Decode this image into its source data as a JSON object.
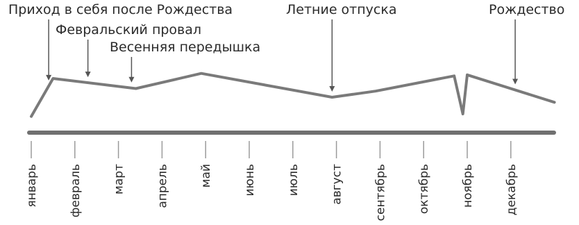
{
  "chart_data": {
    "type": "line",
    "title": "",
    "xlabel": "",
    "ylabel": "",
    "grid": false,
    "categories": [
      "январь",
      "февраль",
      "март",
      "апрель",
      "май",
      "июнь",
      "июль",
      "август",
      "сентябрь",
      "октябрь",
      "ноябрь",
      "декабрь"
    ],
    "series": [
      {
        "points": [
          {
            "month": 0.0,
            "level": 0.1
          },
          {
            "month": 0.5,
            "level": 0.85
          },
          {
            "month": 2.4,
            "level": 0.65
          },
          {
            "month": 3.9,
            "level": 0.95
          },
          {
            "month": 6.9,
            "level": 0.48
          },
          {
            "month": 7.9,
            "level": 0.6
          },
          {
            "month": 9.7,
            "level": 0.9
          },
          {
            "month": 9.9,
            "level": 0.15
          },
          {
            "month": 10.0,
            "level": 0.92
          },
          {
            "month": 12.0,
            "level": 0.38
          }
        ]
      }
    ],
    "ylim": [
      0,
      1
    ],
    "annotations": [
      {
        "text": "Приход в себя после Рождества",
        "month": 0.4
      },
      {
        "text": "Февральский провал",
        "month": 1.3
      },
      {
        "text": "Весенняя передышка",
        "month": 2.3
      },
      {
        "text": "Летние отпуска",
        "month": 6.9
      },
      {
        "text": "Рождество",
        "month": 11.1
      }
    ]
  }
}
